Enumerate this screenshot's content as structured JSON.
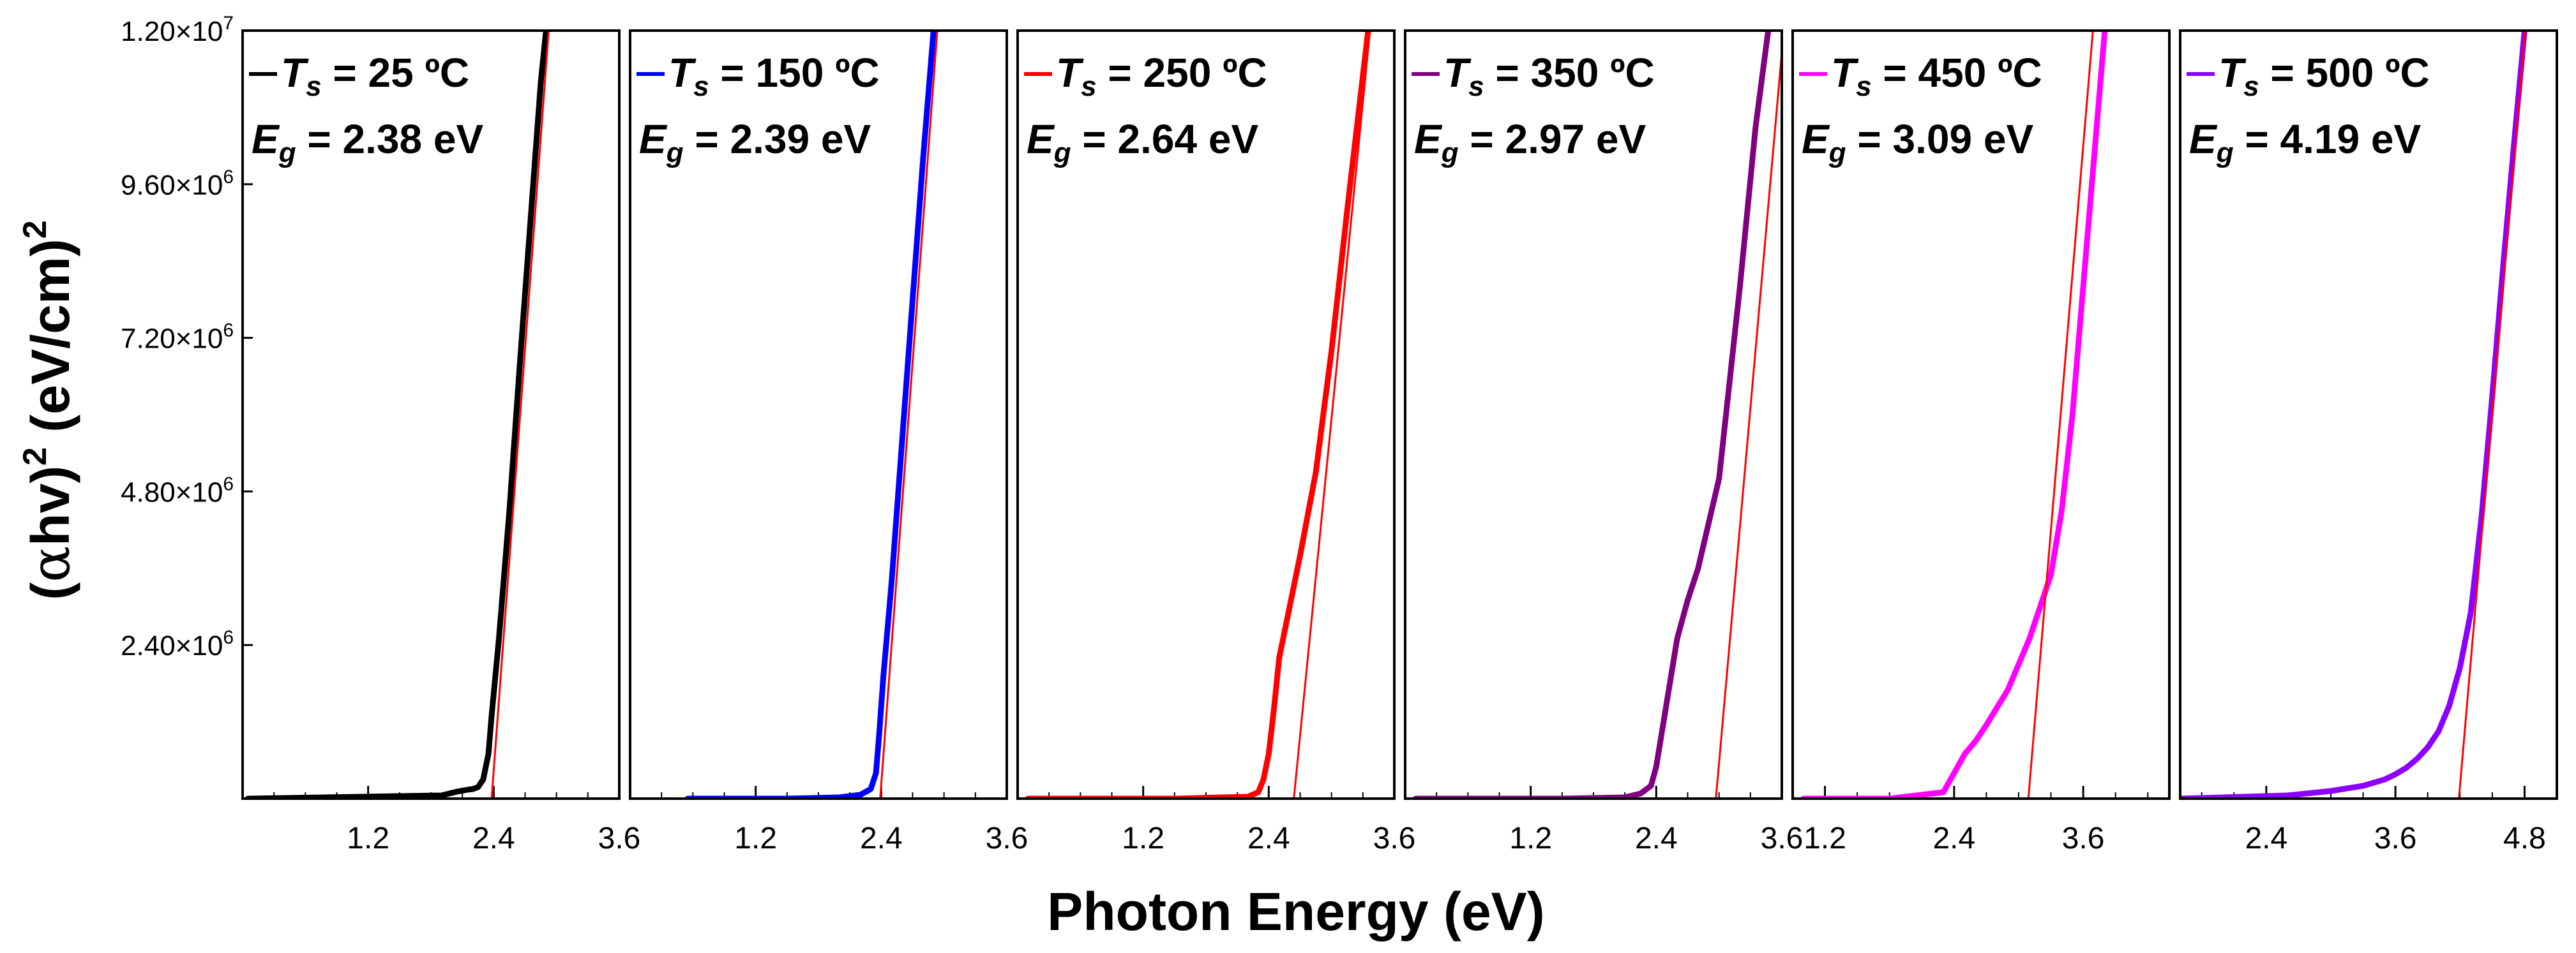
{
  "chart_data": {
    "type": "line",
    "xlabel": "Photon Energy (eV)",
    "ylabel": "(αhv)² (eV/cm)²",
    "ylabel_parts": {
      "open": "(",
      "alpha": "α",
      "hv": "hv)",
      "sq1": "2",
      "unit": " (eV/cm)",
      "sq2": "2"
    },
    "ylim": [
      0,
      12000000
    ],
    "y_ticks": [
      {
        "value": 2400000,
        "mantissa": "2.40×10",
        "exp": "6"
      },
      {
        "value": 4800000,
        "mantissa": "4.80×10",
        "exp": "6"
      },
      {
        "value": 7200000,
        "mantissa": "7.20×10",
        "exp": "6"
      },
      {
        "value": 9600000,
        "mantissa": "9.60×10",
        "exp": "6"
      },
      {
        "value": 12000000,
        "mantissa": "1.20×10",
        "exp": "7"
      }
    ],
    "fit_line_color": "#ff0000",
    "panels": [
      {
        "name": "Ts25",
        "color": "#000000",
        "xlim": [
          0.0,
          3.6
        ],
        "x_ticks": [
          {
            "value": 1.2,
            "label": "1.2"
          },
          {
            "value": 2.4,
            "label": "2.4"
          },
          {
            "value": 3.6,
            "label": "3.6"
          }
        ],
        "legend": {
          "ts_prefix": "T",
          "ts_sub": "s",
          "ts_rest": " = 25 ºC",
          "eg_prefix": "E",
          "eg_sub": "g",
          "eg_rest": " = 2.38 eV"
        },
        "eg": 2.38,
        "fit_slope": 22000000,
        "x": [
          0.05,
          1.9,
          2.05,
          2.15,
          2.2,
          2.25,
          2.3,
          2.35,
          2.38,
          2.45,
          2.55,
          2.65,
          2.75,
          2.85,
          2.9
        ],
        "y": [
          0,
          50000,
          110000,
          140000,
          150000,
          180000,
          300000,
          700000,
          1300000,
          2500000,
          4500000,
          6800000,
          9000000,
          11200000,
          12000000
        ]
      },
      {
        "name": "Ts150",
        "color": "#0000ff",
        "xlim": [
          0.0,
          3.6
        ],
        "x_ticks": [
          {
            "value": 1.2,
            "label": "1.2"
          },
          {
            "value": 2.4,
            "label": "2.4"
          },
          {
            "value": 3.6,
            "label": "3.6"
          }
        ],
        "legend": {
          "ts_prefix": "T",
          "ts_sub": "s",
          "ts_rest": " = 150 ºC",
          "eg_prefix": "E",
          "eg_sub": "g",
          "eg_rest": " = 2.39 eV"
        },
        "eg": 2.39,
        "fit_slope": 22000000,
        "x": [
          0.55,
          1.5,
          2.0,
          2.2,
          2.3,
          2.35,
          2.38,
          2.42,
          2.5,
          2.6,
          2.7,
          2.8,
          2.9
        ],
        "y": [
          0,
          0,
          20000,
          60000,
          150000,
          400000,
          1000000,
          1900000,
          3400000,
          5600000,
          7800000,
          10000000,
          12000000
        ]
      },
      {
        "name": "Ts250",
        "color": "#ff0000",
        "xlim": [
          0.0,
          3.6
        ],
        "x_ticks": [
          {
            "value": 1.2,
            "label": "1.2"
          },
          {
            "value": 2.4,
            "label": "2.4"
          },
          {
            "value": 3.6,
            "label": "3.6"
          }
        ],
        "legend": {
          "ts_prefix": "T",
          "ts_sub": "s",
          "ts_rest": " = 250 ºC",
          "eg_prefix": "E",
          "eg_sub": "g",
          "eg_rest": " = 2.64 eV"
        },
        "eg": 2.64,
        "fit_slope": 16500000,
        "x": [
          0.1,
          1.5,
          2.2,
          2.3,
          2.35,
          2.4,
          2.45,
          2.5,
          2.6,
          2.7,
          2.85,
          3.0,
          3.15,
          3.35
        ],
        "y": [
          0,
          0,
          30000,
          100000,
          300000,
          700000,
          1400000,
          2200000,
          3000000,
          3800000,
          5100000,
          7000000,
          9200000,
          12000000
        ]
      },
      {
        "name": "Ts350",
        "color": "#800080",
        "xlim": [
          0.0,
          3.6
        ],
        "x_ticks": [
          {
            "value": 1.2,
            "label": "1.2"
          },
          {
            "value": 2.4,
            "label": "2.4"
          },
          {
            "value": 3.6,
            "label": "3.6"
          }
        ],
        "legend": {
          "ts_prefix": "T",
          "ts_sub": "s",
          "ts_rest": " = 350 ºC",
          "eg_prefix": "E",
          "eg_sub": "g",
          "eg_rest": " = 2.97 eV"
        },
        "eg": 2.97,
        "fit_slope": 18500000,
        "x": [
          0.1,
          1.5,
          2.1,
          2.25,
          2.35,
          2.4,
          2.5,
          2.6,
          2.7,
          2.8,
          3.0,
          3.2,
          3.35,
          3.47
        ],
        "y": [
          0,
          0,
          20000,
          80000,
          200000,
          500000,
          1500000,
          2500000,
          3100000,
          3600000,
          5000000,
          8000000,
          10500000,
          12000000
        ]
      },
      {
        "name": "Ts450",
        "color": "#ff00ff",
        "xlim": [
          0.9,
          4.4
        ],
        "x_ticks": [
          {
            "value": 1.2,
            "label": "1.2"
          },
          {
            "value": 2.4,
            "label": "2.4"
          },
          {
            "value": 3.6,
            "label": "3.6"
          }
        ],
        "legend": {
          "ts_prefix": "T",
          "ts_sub": "s",
          "ts_rest": " = 450 ºC",
          "eg_prefix": "E",
          "eg_sub": "g",
          "eg_rest": " = 3.09 eV"
        },
        "eg": 3.09,
        "fit_slope": 20000000,
        "x": [
          1.0,
          1.8,
          2.3,
          2.4,
          2.5,
          2.6,
          2.7,
          2.9,
          3.1,
          3.3,
          3.4,
          3.5,
          3.6,
          3.7,
          3.8
        ],
        "y": [
          0,
          0,
          100000,
          400000,
          700000,
          900000,
          1150000,
          1700000,
          2500000,
          3500000,
          4500000,
          6000000,
          8000000,
          10000000,
          12000000
        ]
      },
      {
        "name": "Ts500",
        "color": "#8b00ff",
        "xlim": [
          1.6,
          5.1
        ],
        "x_ticks": [
          {
            "value": 2.4,
            "label": "2.4"
          },
          {
            "value": 3.6,
            "label": "3.6"
          },
          {
            "value": 4.8,
            "label": "4.8"
          }
        ],
        "legend": {
          "ts_prefix": "T",
          "ts_sub": "s",
          "ts_rest": " = 500 ºC",
          "eg_prefix": "E",
          "eg_sub": "g",
          "eg_rest": " = 4.19 eV"
        },
        "eg": 4.19,
        "fit_slope": 19500000,
        "x": [
          1.6,
          2.6,
          3.0,
          3.3,
          3.5,
          3.6,
          3.7,
          3.8,
          3.9,
          4.0,
          4.1,
          4.2,
          4.3,
          4.4,
          4.5,
          4.6,
          4.7,
          4.8
        ],
        "y": [
          0,
          50000,
          120000,
          200000,
          300000,
          380000,
          480000,
          620000,
          800000,
          1050000,
          1450000,
          2050000,
          2900000,
          4400000,
          6300000,
          8300000,
          10200000,
          12000000
        ]
      }
    ]
  }
}
